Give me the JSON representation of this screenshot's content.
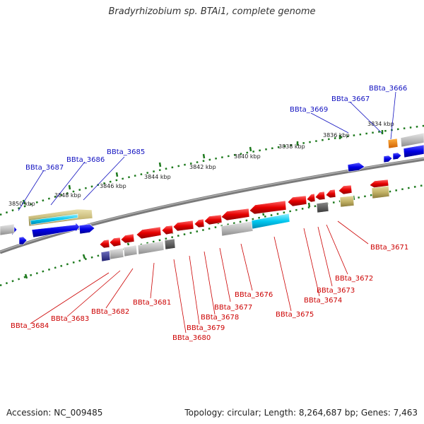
{
  "title": "Bradyrhizobium sp. BTAi1, complete genome",
  "accession_text": "Accession: NC_009485",
  "topology_text": "Topology: circular; Length: 8,264,687 bp; Genes: 7,463",
  "colors": {
    "forward_label": "#1010c0",
    "reverse_label": "#cc0000",
    "forward_gene": "#0a0adc",
    "reverse_gene": "#e00000",
    "backbone": "#808080",
    "tick": "#1e7a1e"
  },
  "ruler_labels": [
    "3834 kbp",
    "3836 kbp",
    "3838 kbp",
    "3840 kbp",
    "3842 kbp",
    "3844 kbp",
    "3846 kbp",
    "3848 kbp",
    "3850 kbp"
  ],
  "forward_labels": [
    "BBta_3666",
    "BBta_3667",
    "BBta_3669",
    "BBta_3685",
    "BBta_3686",
    "BBta_3687"
  ],
  "reverse_labels": [
    "BBta_3671",
    "BBta_3672",
    "BBta_3673",
    "BBta_3674",
    "BBta_3675",
    "BBta_3676",
    "BBta_3677",
    "BBta_3678",
    "BBta_3679",
    "BBta_3680",
    "BBta_3681",
    "BBta_3682",
    "BBta_3683",
    "BBta_3684"
  ]
}
